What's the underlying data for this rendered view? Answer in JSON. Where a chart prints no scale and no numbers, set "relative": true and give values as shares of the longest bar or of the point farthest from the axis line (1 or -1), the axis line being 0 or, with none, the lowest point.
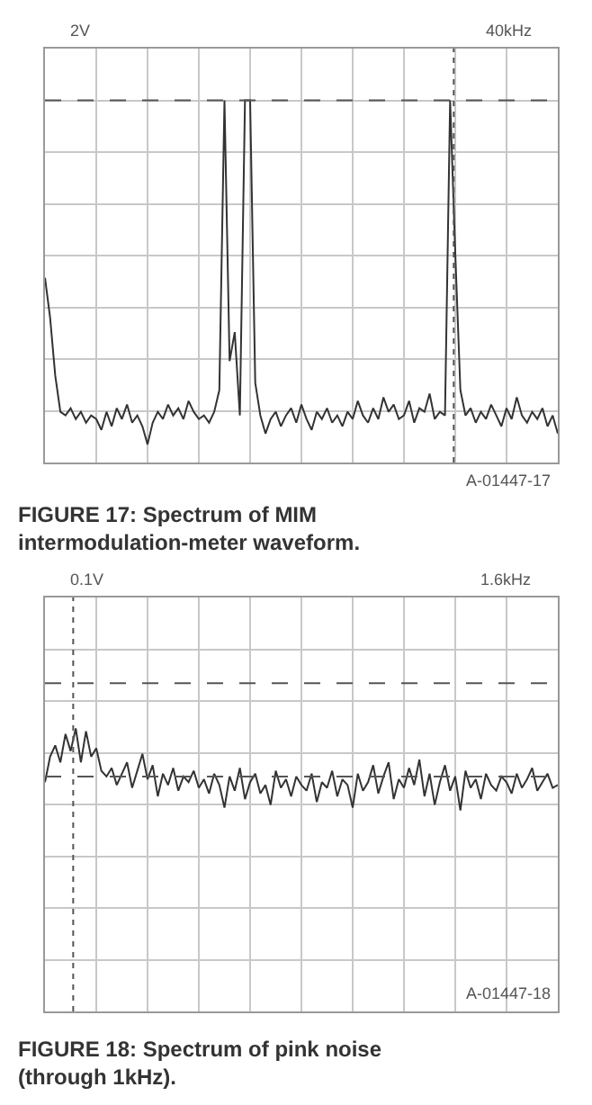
{
  "chart_data": [
    {
      "type": "line",
      "relative": true,
      "grid": true,
      "title": "FIGURE 17: Spectrum of MIM intermodulation-meter waveform.",
      "annotations": [
        "2V",
        "40kHz",
        "A-01447-17"
      ],
      "categories": [
        null,
        null,
        null,
        null,
        null,
        null,
        null,
        null,
        null,
        null,
        null,
        null,
        null,
        null,
        null,
        null,
        null,
        null,
        null,
        null,
        null,
        null,
        null,
        null,
        null,
        null,
        null,
        null,
        null,
        null,
        null,
        null,
        null,
        null,
        null,
        null,
        null,
        null,
        null,
        null,
        null,
        null,
        null,
        null,
        null,
        null,
        null,
        null,
        null,
        null,
        null,
        null,
        null,
        null,
        null,
        null,
        null,
        null,
        null,
        null,
        null,
        null,
        null,
        null,
        null,
        null,
        null,
        null,
        null,
        null,
        null,
        null,
        null,
        null,
        null,
        null,
        null,
        null,
        null,
        null,
        null,
        null,
        null,
        null,
        null,
        null,
        null,
        null,
        null,
        null,
        null,
        null,
        null,
        null,
        null,
        null,
        null,
        null,
        null,
        null,
        null
      ],
      "series": [
        {
          "color": "#333333",
          "values": [
            0.51,
            0.4,
            0.24,
            0.14,
            0.13,
            0.15,
            0.12,
            0.14,
            0.11,
            0.13,
            0.12,
            0.09,
            0.14,
            0.1,
            0.15,
            0.12,
            0.16,
            0.11,
            0.13,
            0.1,
            0.05,
            0.11,
            0.14,
            0.12,
            0.16,
            0.13,
            0.15,
            0.12,
            0.17,
            0.14,
            0.12,
            0.13,
            0.11,
            0.14,
            0.2,
            1.0,
            0.28,
            0.36,
            0.13,
            1.0,
            1.0,
            0.22,
            0.13,
            0.08,
            0.12,
            0.14,
            0.1,
            0.13,
            0.15,
            0.11,
            0.16,
            0.12,
            0.09,
            0.14,
            0.12,
            0.15,
            0.11,
            0.13,
            0.1,
            0.14,
            0.12,
            0.17,
            0.13,
            0.11,
            0.15,
            0.12,
            0.18,
            0.14,
            0.16,
            0.12,
            0.13,
            0.17,
            0.11,
            0.15,
            0.14,
            0.19,
            0.12,
            0.14,
            0.13,
            1.0,
            0.58,
            0.2,
            0.13,
            0.15,
            0.11,
            0.14,
            0.12,
            0.16,
            0.13,
            0.1,
            0.15,
            0.12,
            0.18,
            0.13,
            0.11,
            0.14,
            0.12,
            0.15,
            0.1,
            0.13,
            0.08
          ]
        }
      ],
      "ref_lines": [
        {
          "axis": "y",
          "value": 1.0,
          "line_style": "dashed",
          "color": "#555555"
        }
      ]
    },
    {
      "type": "line",
      "relative": true,
      "grid": true,
      "title": "FIGURE 18: Spectrum of pink noise (through 1kHz).",
      "annotations": [
        "0.1V",
        "1.6kHz",
        "A-01447-18"
      ],
      "categories": [
        null,
        null,
        null,
        null,
        null,
        null,
        null,
        null,
        null,
        null,
        null,
        null,
        null,
        null,
        null,
        null,
        null,
        null,
        null,
        null,
        null,
        null,
        null,
        null,
        null,
        null,
        null,
        null,
        null,
        null,
        null,
        null,
        null,
        null,
        null,
        null,
        null,
        null,
        null,
        null,
        null,
        null,
        null,
        null,
        null,
        null,
        null,
        null,
        null,
        null,
        null,
        null,
        null,
        null,
        null,
        null,
        null,
        null,
        null,
        null,
        null,
        null,
        null,
        null,
        null,
        null,
        null,
        null,
        null,
        null,
        null,
        null,
        null,
        null,
        null,
        null,
        null,
        null,
        null,
        null,
        null,
        null,
        null,
        null,
        null,
        null,
        null,
        null,
        null,
        null,
        null,
        null,
        null,
        null,
        null,
        null,
        null,
        null,
        null,
        null,
        null
      ],
      "series": [
        {
          "color": "#333333",
          "values": [
            0.81,
            0.9,
            0.94,
            0.88,
            0.98,
            0.92,
            1.0,
            0.88,
            0.99,
            0.9,
            0.93,
            0.85,
            0.83,
            0.86,
            0.8,
            0.84,
            0.88,
            0.79,
            0.85,
            0.91,
            0.82,
            0.87,
            0.76,
            0.84,
            0.8,
            0.86,
            0.78,
            0.83,
            0.81,
            0.85,
            0.79,
            0.82,
            0.77,
            0.84,
            0.8,
            0.72,
            0.83,
            0.78,
            0.86,
            0.75,
            0.81,
            0.84,
            0.77,
            0.8,
            0.73,
            0.85,
            0.79,
            0.82,
            0.76,
            0.83,
            0.8,
            0.78,
            0.84,
            0.74,
            0.81,
            0.79,
            0.85,
            0.76,
            0.82,
            0.8,
            0.72,
            0.84,
            0.78,
            0.81,
            0.87,
            0.77,
            0.83,
            0.88,
            0.75,
            0.82,
            0.79,
            0.86,
            0.8,
            0.89,
            0.76,
            0.84,
            0.73,
            0.81,
            0.87,
            0.78,
            0.83,
            0.71,
            0.85,
            0.79,
            0.82,
            0.75,
            0.84,
            0.8,
            0.78,
            0.83,
            0.81,
            0.77,
            0.84,
            0.79,
            0.82,
            0.86,
            0.78,
            0.81,
            0.84,
            0.79,
            0.8
          ]
        }
      ],
      "ref_lines": [
        {
          "axis": "y",
          "value": 1.16,
          "line_style": "dashed",
          "color": "#555555"
        },
        {
          "axis": "y",
          "value": 0.83,
          "line_style": "dashed",
          "color": "#555555"
        }
      ]
    }
  ]
}
